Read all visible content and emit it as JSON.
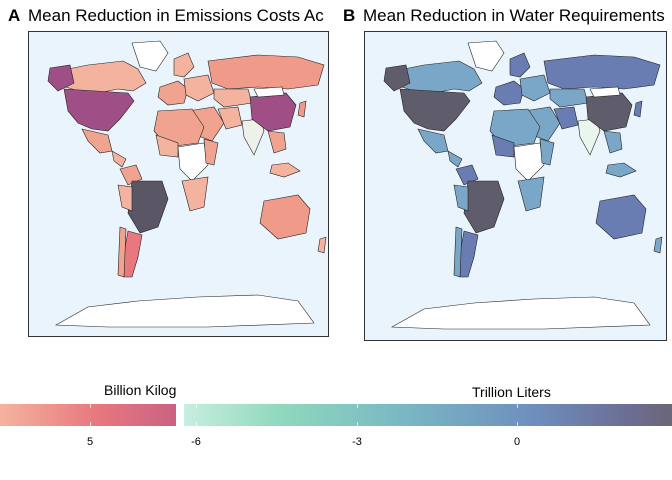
{
  "panels": [
    {
      "tag": "A",
      "title": "Mean Reduction in Emissions Costs Ac",
      "legend_title": "Billion Kilog",
      "colors": {
        "background": "#eaf4fd",
        "land_low": "#f4b39e",
        "land_mid": "#e8787e",
        "land_high": "#a04f86",
        "land_max": "#5a5666",
        "neutral": "#eef1ea"
      },
      "legend_ticks": [
        "5"
      ]
    },
    {
      "tag": "B",
      "title": "Mean Reduction in Water Requirements",
      "legend_title": "Trillion Liters",
      "colors": {
        "background": "#eaf4fd",
        "land_low": "#b9e7d5",
        "land_mid": "#7aa6c7",
        "land_high": "#6a7db2",
        "land_max": "#5f5d6b",
        "neutral": "#e8f6ee"
      },
      "legend_ticks": [
        "-6",
        "-3",
        "0"
      ]
    }
  ]
}
